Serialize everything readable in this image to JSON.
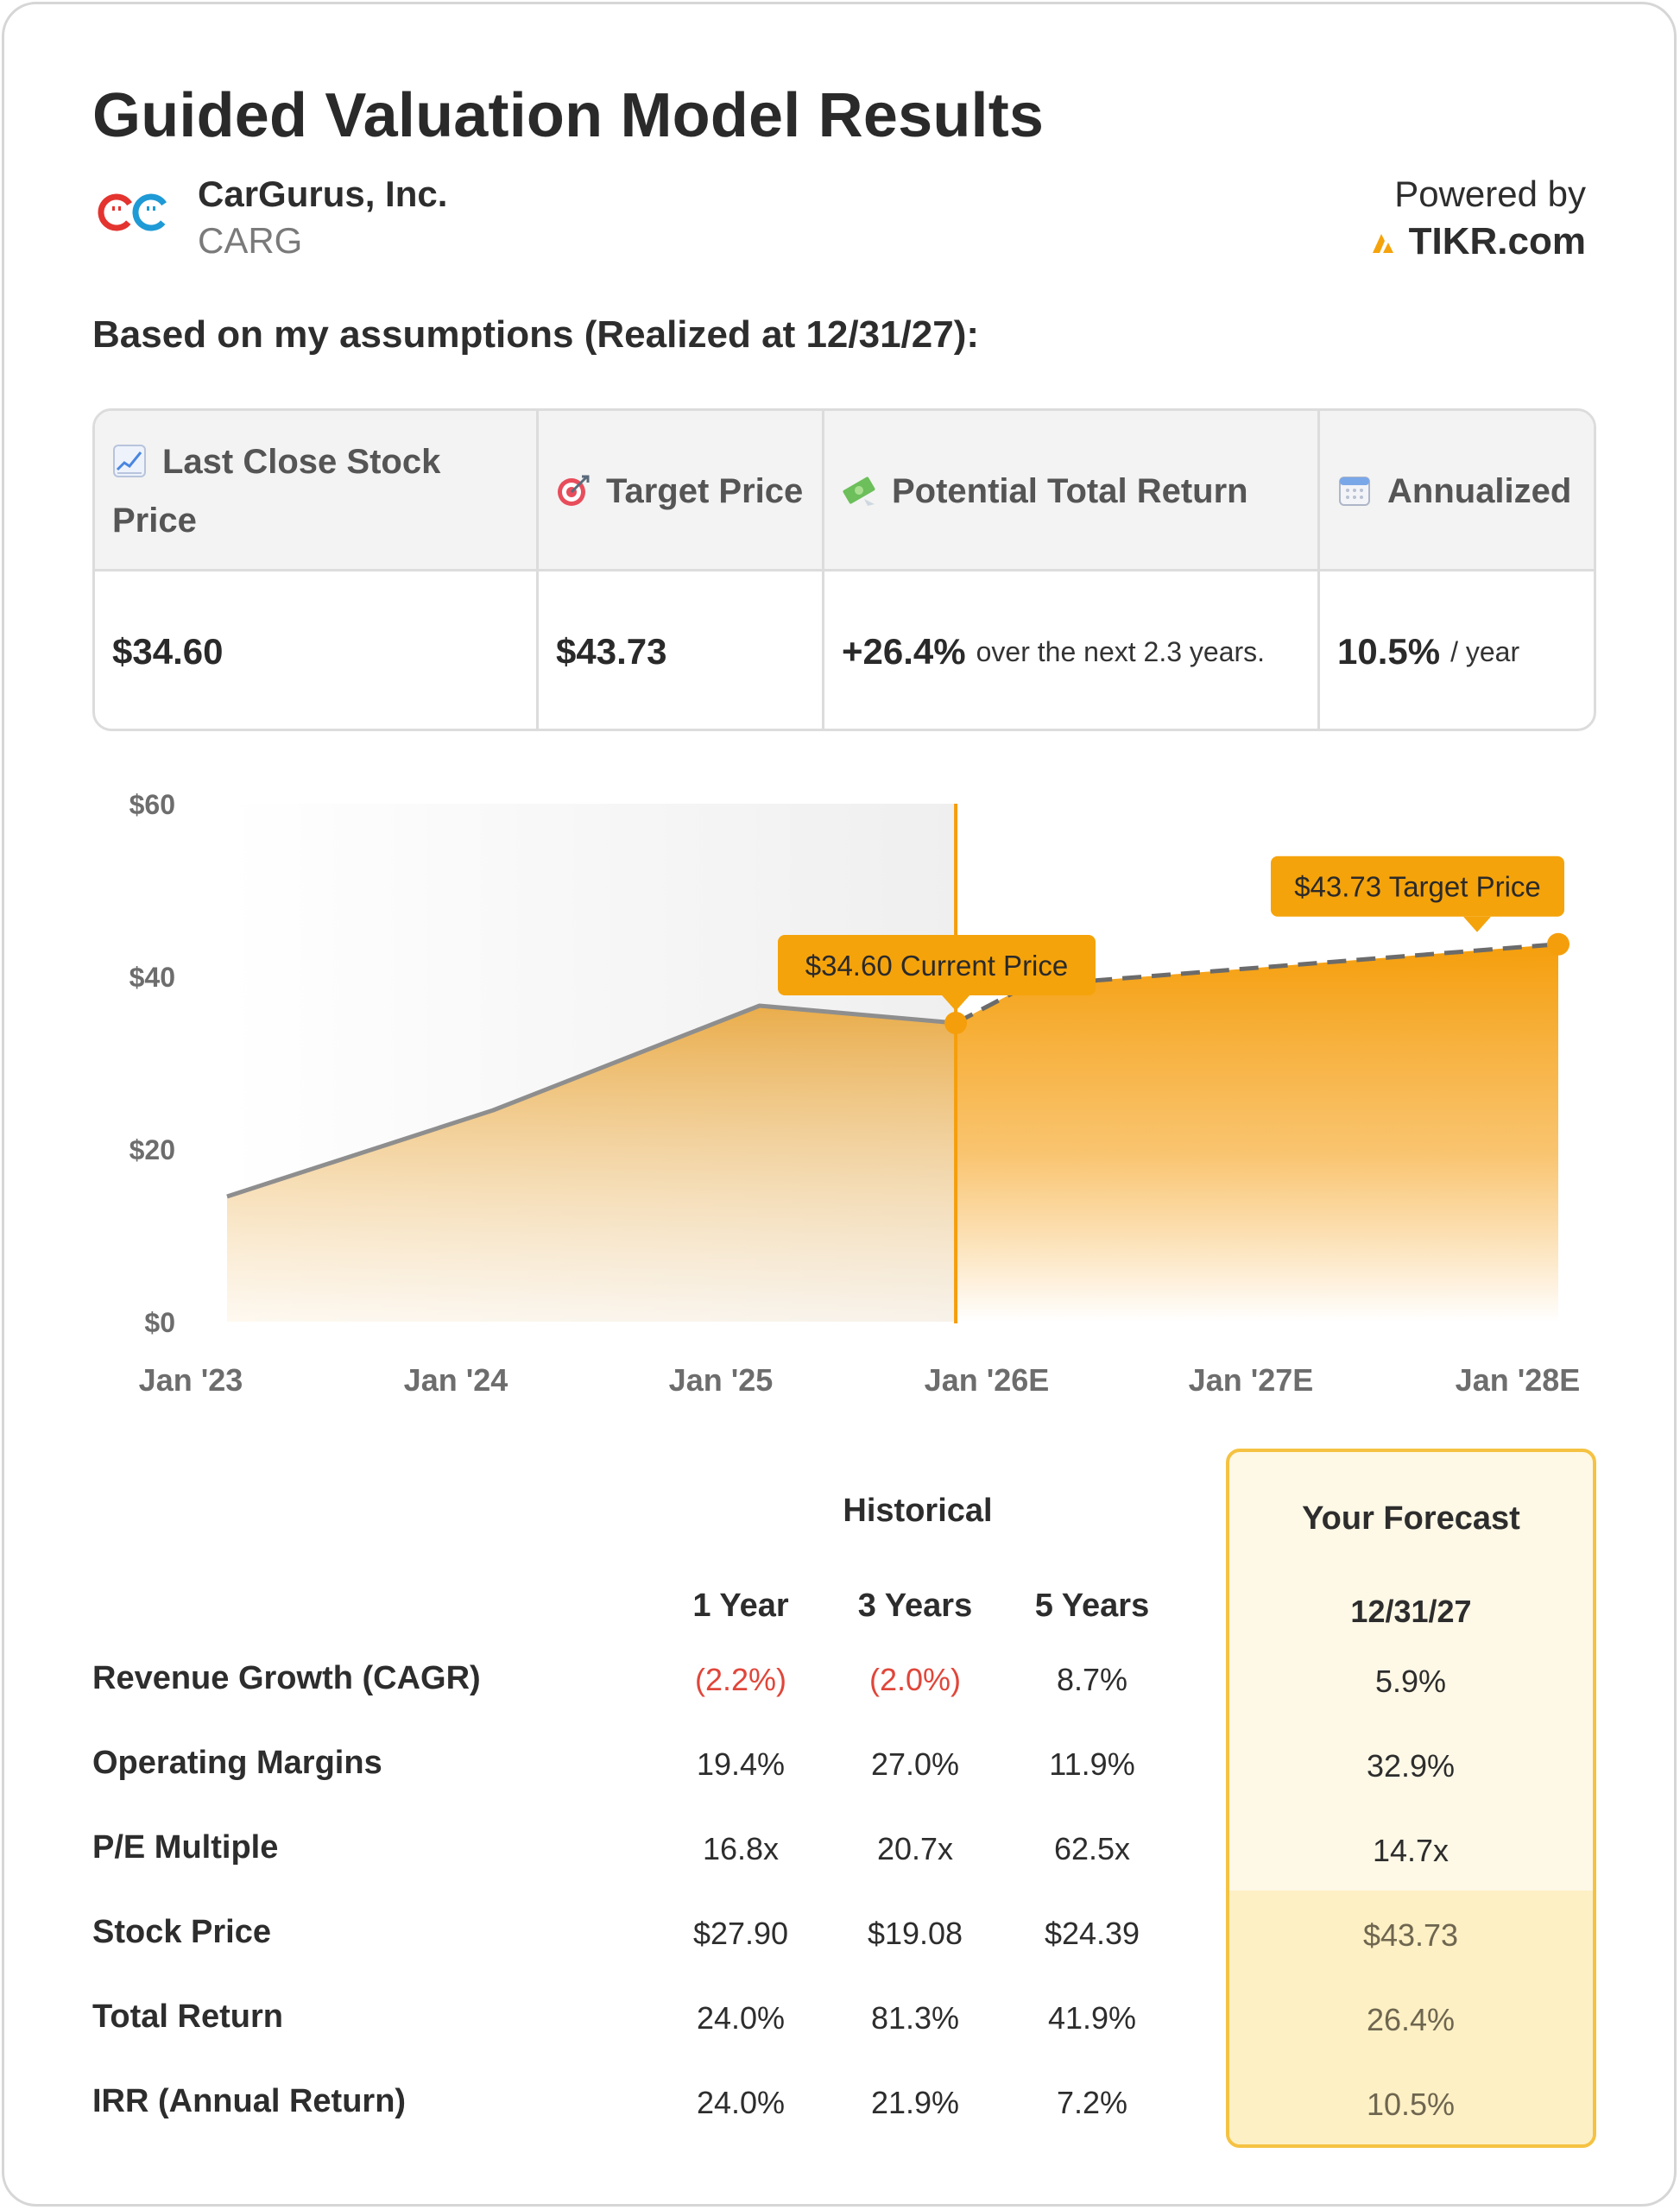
{
  "header": {
    "title": "Guided Valuation Model Results",
    "company_name": "CarGurus, Inc.",
    "ticker": "CARG",
    "powered_by": "Powered by",
    "brand": "TIKR.com",
    "assumptions": "Based on my assumptions (Realized at 12/31/27):"
  },
  "summary": {
    "columns": [
      {
        "icon": "chart-increasing-icon",
        "label": "Last Close Stock Price",
        "value": "$34.60",
        "suffix": ""
      },
      {
        "icon": "target-icon",
        "label": "Target Price",
        "value": "$43.73",
        "suffix": ""
      },
      {
        "icon": "money-with-wings-icon",
        "label": "Potential Total Return",
        "value": "+26.4%",
        "suffix": "over the next 2.3 years."
      },
      {
        "icon": "calendar-icon",
        "label": "Annualized",
        "value": "10.5%",
        "suffix": "/ year"
      }
    ]
  },
  "chart_data": {
    "type": "area",
    "x_ticks": [
      "Jan '23",
      "Jan '24",
      "Jan '25",
      "Jan '26E",
      "Jan '27E",
      "Jan '28E"
    ],
    "y_ticks": [
      "$0",
      "$20",
      "$40",
      "$60"
    ],
    "ylim": [
      0,
      60
    ],
    "historical": [
      {
        "x": "2023-01-01",
        "y": 14.5
      },
      {
        "x": "2024-01-01",
        "y": 24.5
      },
      {
        "x": "2024-12-31",
        "y": 36.6
      },
      {
        "x": "2025-09-26",
        "y": 34.6
      }
    ],
    "forecast": [
      {
        "x": "2025-09-26",
        "y": 34.6
      },
      {
        "x": "2026-01-01",
        "y": 38.9
      },
      {
        "x": "2027-12-31",
        "y": 43.73
      }
    ],
    "current_marker": {
      "label": "$34.60 Current Price",
      "x": "2025-09-26",
      "y": 34.6
    },
    "target_marker": {
      "label": "$43.73 Target Price",
      "x": "2027-12-31",
      "y": 43.73
    },
    "colors": {
      "accent": "#f59e0b",
      "historical_line": "#8e8e8e",
      "forecast_line": "#6b6b6b",
      "callout": "#f5a30b"
    }
  },
  "metrics": {
    "historical_label": "Historical",
    "periods": [
      "1 Year",
      "3 Years",
      "5 Years"
    ],
    "forecast_title": "Your Forecast",
    "forecast_date": "12/31/27",
    "rows": [
      {
        "label": "Revenue Growth (CAGR)",
        "values": [
          "(2.2%)",
          "(2.0%)",
          "8.7%"
        ],
        "forecast": "5.9%"
      },
      {
        "label": "Operating Margins",
        "values": [
          "19.4%",
          "27.0%",
          "11.9%"
        ],
        "forecast": "32.9%"
      },
      {
        "label": "P/E Multiple",
        "values": [
          "16.8x",
          "20.7x",
          "62.5x"
        ],
        "forecast": "14.7x"
      },
      {
        "label": "Stock Price",
        "values": [
          "$27.90",
          "$19.08",
          "$24.39"
        ],
        "forecast": "$43.73"
      },
      {
        "label": "Total Return",
        "values": [
          "24.0%",
          "81.3%",
          "41.9%"
        ],
        "forecast": "26.4%"
      },
      {
        "label": "IRR (Annual Return)",
        "values": [
          "24.0%",
          "21.9%",
          "7.2%"
        ],
        "forecast": "10.5%"
      }
    ]
  }
}
